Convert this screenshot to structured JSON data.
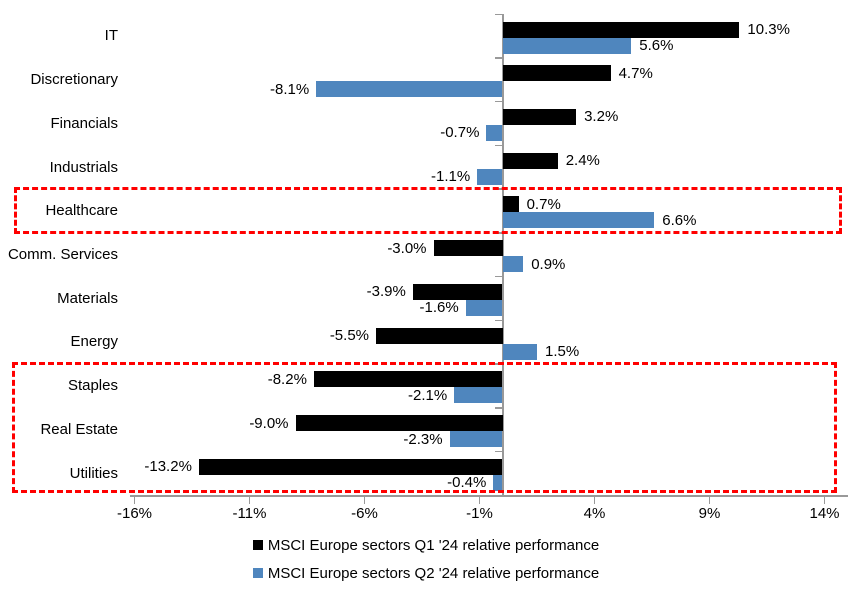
{
  "chart_data": {
    "type": "bar",
    "orientation": "horizontal",
    "title": "",
    "categories": [
      "IT",
      "Discretionary",
      "Financials",
      "Industrials",
      "Healthcare",
      "Comm. Services",
      "Materials",
      "Energy",
      "Staples",
      "Real Estate",
      "Utilities"
    ],
    "series": [
      {
        "name": "MSCI Europe sectors Q1 '24 relative performance",
        "color": "#000000",
        "values": [
          10.3,
          4.7,
          3.2,
          2.4,
          0.7,
          -3.0,
          -3.9,
          -5.5,
          -8.2,
          -9.0,
          -13.2
        ],
        "labels": [
          "10.3%",
          "4.7%",
          "3.2%",
          "2.4%",
          "0.7%",
          "-3.0%",
          "-3.9%",
          "-5.5%",
          "-8.2%",
          "-9.0%",
          "-13.2%"
        ]
      },
      {
        "name": "MSCI Europe sectors Q2 '24 relative performance",
        "color": "#4F86BE",
        "values": [
          5.6,
          -8.1,
          -0.7,
          -1.1,
          6.6,
          0.9,
          -1.6,
          1.5,
          -2.1,
          -2.3,
          -0.4
        ],
        "labels": [
          "5.6%",
          "-8.1%",
          "-0.7%",
          "-1.1%",
          "6.6%",
          "0.9%",
          "-1.6%",
          "1.5%",
          "-2.1%",
          "-2.3%",
          "-0.4%"
        ]
      }
    ],
    "x_axis": {
      "min": -16,
      "max": 14,
      "tick_values": [
        -16,
        -11,
        -6,
        -1,
        4,
        9,
        14
      ],
      "tick_labels": [
        "-16%",
        "-11%",
        "-6%",
        "-1%",
        "4%",
        "9%",
        "14%"
      ]
    },
    "legend_position": "bottom",
    "grid": false,
    "annotations": {
      "highlight_color": "#FF0000",
      "highlight_boxes": [
        {
          "name": "healthcare-highlight",
          "first_category": "Healthcare",
          "last_category": "Healthcare"
        },
        {
          "name": "defensives-highlight",
          "first_category": "Staples",
          "last_category": "Utilities"
        }
      ]
    }
  }
}
